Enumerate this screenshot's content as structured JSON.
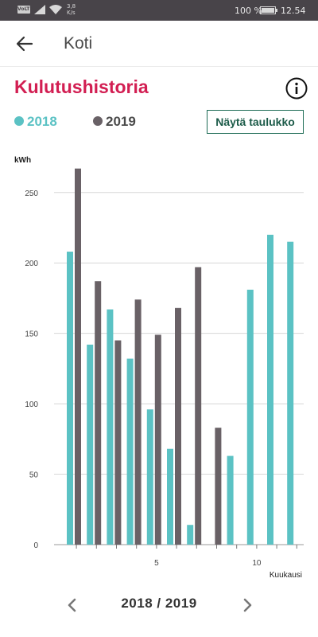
{
  "status_bar": {
    "volte": "VoLTE",
    "net_speed": "3,8",
    "net_unit": "K/s",
    "battery": "100 %",
    "time": "12.54"
  },
  "app_bar": {
    "title": "Koti"
  },
  "page": {
    "title": "Kulutushistoria",
    "table_button": "Näytä taulukko"
  },
  "legend": [
    {
      "label": "2018",
      "color": "#5bc2c4"
    },
    {
      "label": "2019",
      "color": "#696166"
    }
  ],
  "year_nav": {
    "label": "2018 / 2019"
  },
  "chart_data": {
    "type": "bar",
    "ylabel": "kWh",
    "xlabel": "Kuukausi",
    "ylim": [
      0,
      270
    ],
    "yticks": [
      0,
      50,
      100,
      150,
      200,
      250
    ],
    "xticks": [
      5,
      10
    ],
    "categories": [
      1,
      2,
      3,
      4,
      5,
      6,
      7,
      8,
      9,
      10,
      11,
      12
    ],
    "grid": true,
    "series": [
      {
        "name": "2018",
        "color": "#5bc2c4",
        "values": [
          208,
          142,
          167,
          132,
          96,
          68,
          14,
          null,
          63,
          181,
          220,
          215
        ]
      },
      {
        "name": "2019",
        "color": "#696166",
        "values": [
          267,
          187,
          145,
          174,
          149,
          168,
          197,
          83,
          null,
          null,
          null,
          null
        ]
      }
    ]
  }
}
